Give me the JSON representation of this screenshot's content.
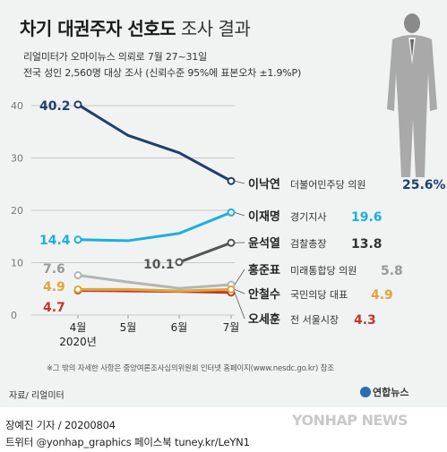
{
  "header": {
    "title_bold": "차기 대권주자 선호도",
    "title_light": "조사 결과",
    "sub1": "리얼미터가 오마이뉴스 의뢰로 7월 27~31일",
    "sub2": "전국 성인 2,560명 대상 조사 (신뢰수준 95%에 표본오차 ±1.9%P)"
  },
  "chart_data": {
    "type": "line",
    "x": [
      "4월",
      "5월",
      "6월",
      "7월"
    ],
    "x_sublabel": "2020년",
    "ylim": [
      0,
      40
    ],
    "yticks": [
      0,
      10,
      20,
      30,
      40
    ],
    "series": [
      {
        "name": "이낙연",
        "party": "더불어민주당 의원",
        "values": [
          40.2,
          34.3,
          31,
          25.6
        ],
        "color": "#1f3f6e",
        "start_label": "40.2",
        "end_label": "25.6%"
      },
      {
        "name": "이재명",
        "party": "경기지사",
        "values": [
          14.4,
          14.2,
          15.6,
          19.6
        ],
        "color": "#1ab0dd",
        "start_label": "14.4",
        "end_label": "19.6"
      },
      {
        "name": "윤석열",
        "party": "검찰총장",
        "values": [
          null,
          null,
          10.1,
          13.8
        ],
        "color": "#555555",
        "start_label": "10.1",
        "end_label": "13.8"
      },
      {
        "name": "홍준표",
        "party": "미래통합당 의원",
        "values": [
          7.6,
          6.3,
          5.1,
          5.8
        ],
        "color": "#b5b5b5",
        "start_label": "7.6",
        "end_label": "5.8"
      },
      {
        "name": "안철수",
        "party": "국민의당 대표",
        "values": [
          4.9,
          4.9,
          4.6,
          4.9
        ],
        "color": "#e0a43c",
        "start_label": "4.9",
        "end_label": "4.9"
      },
      {
        "name": "오세훈",
        "party": "전 서울시장",
        "values": [
          4.7,
          4.6,
          4.5,
          4.3
        ],
        "color": "#c0392b",
        "start_label": "4.7",
        "end_label": "4.3"
      }
    ]
  },
  "footer": {
    "note": "※그 밖의 자세한 사항은 중앙여론조사심의위원회 인터넷 홈페이지(www.nesdc.go.kr) 참조",
    "source": "자료/ 리얼미터",
    "logo": "연합뉴스",
    "reporter": "장예진 기자 / 20200804",
    "social": "트위터 @yonhap_graphics  페이스북 tuney.kr/LeYN1",
    "watermark": "YONHAP NEWS"
  }
}
